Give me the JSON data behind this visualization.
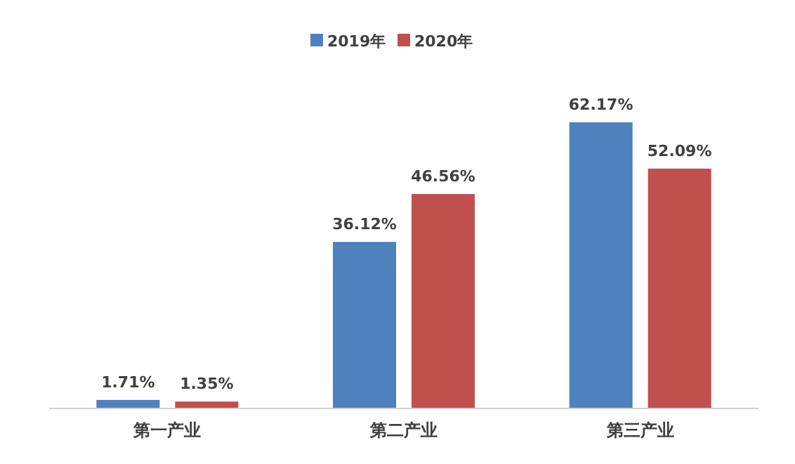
{
  "chart_data": {
    "type": "bar",
    "categories": [
      "第一产业",
      "第二产业",
      "第三产业"
    ],
    "legend": "top",
    "series": [
      {
        "name": "2019年",
        "color": "#4f81bd",
        "values": [
          1.71,
          36.12,
          62.17
        ],
        "value_labels": [
          "1.71%",
          "36.12%",
          "62.17%"
        ]
      },
      {
        "name": "2020年",
        "color": "#c0504d",
        "values": [
          1.35,
          46.56,
          52.09
        ],
        "value_labels": [
          "1.35%",
          "46.56%",
          "52.09%"
        ]
      }
    ]
  }
}
